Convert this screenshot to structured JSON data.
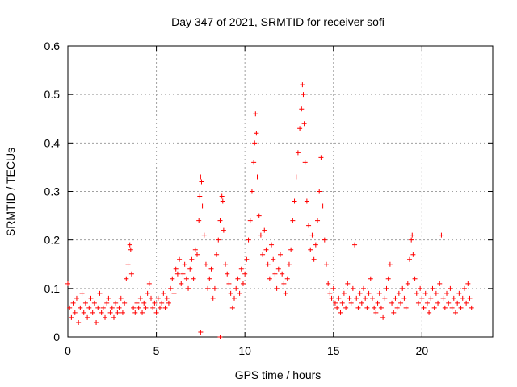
{
  "chart_data": {
    "type": "scatter",
    "title": "Day 347 of 2021, SRMTID for receiver sofi",
    "xlabel": "GPS time / hours",
    "ylabel": "SRMTID / TECUs",
    "xlim": [
      0,
      24
    ],
    "ylim": [
      0,
      0.6
    ],
    "x_ticks": [
      0,
      5,
      10,
      15,
      20
    ],
    "x_tick_labels": [
      "0",
      "5",
      "10",
      "15",
      "20"
    ],
    "y_ticks": [
      0,
      0.1,
      0.2,
      0.3,
      0.4,
      0.5,
      0.6
    ],
    "y_tick_labels": [
      "0",
      "0.1",
      "0.2",
      "0.3",
      "0.4",
      "0.5",
      "0.6"
    ],
    "grid": true,
    "marker": "+",
    "series_color": "#ff0000",
    "series": [
      {
        "name": "SRMTID",
        "points": [
          [
            0.0,
            0.11
          ],
          [
            0.1,
            0.06
          ],
          [
            0.2,
            0.04
          ],
          [
            0.3,
            0.07
          ],
          [
            0.4,
            0.05
          ],
          [
            0.5,
            0.08
          ],
          [
            0.6,
            0.03
          ],
          [
            0.7,
            0.06
          ],
          [
            0.8,
            0.09
          ],
          [
            0.9,
            0.05
          ],
          [
            1.0,
            0.07
          ],
          [
            1.1,
            0.04
          ],
          [
            1.2,
            0.06
          ],
          [
            1.3,
            0.08
          ],
          [
            1.4,
            0.05
          ],
          [
            1.5,
            0.07
          ],
          [
            1.6,
            0.03
          ],
          [
            1.7,
            0.06
          ],
          [
            1.8,
            0.09
          ],
          [
            1.9,
            0.05
          ],
          [
            2.0,
            0.06
          ],
          [
            2.1,
            0.04
          ],
          [
            2.2,
            0.07
          ],
          [
            2.3,
            0.08
          ],
          [
            2.4,
            0.05
          ],
          [
            2.5,
            0.06
          ],
          [
            2.6,
            0.04
          ],
          [
            2.7,
            0.07
          ],
          [
            2.8,
            0.05
          ],
          [
            2.9,
            0.06
          ],
          [
            3.0,
            0.08
          ],
          [
            3.1,
            0.05
          ],
          [
            3.2,
            0.07
          ],
          [
            3.3,
            0.12
          ],
          [
            3.4,
            0.15
          ],
          [
            3.5,
            0.19
          ],
          [
            3.55,
            0.18
          ],
          [
            3.6,
            0.13
          ],
          [
            3.7,
            0.06
          ],
          [
            3.8,
            0.05
          ],
          [
            3.9,
            0.07
          ],
          [
            4.0,
            0.06
          ],
          [
            4.1,
            0.08
          ],
          [
            4.2,
            0.05
          ],
          [
            4.3,
            0.07
          ],
          [
            4.4,
            0.06
          ],
          [
            4.5,
            0.09
          ],
          [
            4.6,
            0.11
          ],
          [
            4.7,
            0.08
          ],
          [
            4.8,
            0.06
          ],
          [
            4.9,
            0.07
          ],
          [
            5.0,
            0.05
          ],
          [
            5.1,
            0.08
          ],
          [
            5.2,
            0.06
          ],
          [
            5.3,
            0.07
          ],
          [
            5.4,
            0.09
          ],
          [
            5.5,
            0.06
          ],
          [
            5.6,
            0.08
          ],
          [
            5.7,
            0.07
          ],
          [
            5.8,
            0.1
          ],
          [
            5.9,
            0.12
          ],
          [
            6.0,
            0.09
          ],
          [
            6.1,
            0.14
          ],
          [
            6.2,
            0.13
          ],
          [
            6.3,
            0.16
          ],
          [
            6.4,
            0.11
          ],
          [
            6.5,
            0.13
          ],
          [
            6.6,
            0.15
          ],
          [
            6.7,
            0.12
          ],
          [
            6.8,
            0.1
          ],
          [
            6.9,
            0.14
          ],
          [
            7.0,
            0.16
          ],
          [
            7.1,
            0.12
          ],
          [
            7.2,
            0.18
          ],
          [
            7.3,
            0.17
          ],
          [
            7.4,
            0.24
          ],
          [
            7.45,
            0.29
          ],
          [
            7.5,
            0.33
          ],
          [
            7.55,
            0.32
          ],
          [
            7.6,
            0.27
          ],
          [
            7.7,
            0.21
          ],
          [
            7.8,
            0.15
          ],
          [
            7.9,
            0.1
          ],
          [
            8.0,
            0.12
          ],
          [
            8.1,
            0.14
          ],
          [
            8.2,
            0.08
          ],
          [
            8.3,
            0.1
          ],
          [
            8.4,
            0.17
          ],
          [
            8.5,
            0.2
          ],
          [
            8.6,
            0.24
          ],
          [
            8.7,
            0.29
          ],
          [
            8.75,
            0.28
          ],
          [
            8.8,
            0.22
          ],
          [
            8.9,
            0.15
          ],
          [
            9.0,
            0.13
          ],
          [
            9.1,
            0.11
          ],
          [
            9.2,
            0.09
          ],
          [
            9.3,
            0.06
          ],
          [
            9.4,
            0.08
          ],
          [
            9.5,
            0.1
          ],
          [
            9.6,
            0.12
          ],
          [
            9.7,
            0.09
          ],
          [
            9.8,
            0.14
          ],
          [
            9.9,
            0.11
          ],
          [
            10.0,
            0.13
          ],
          [
            10.1,
            0.16
          ],
          [
            10.2,
            0.2
          ],
          [
            10.3,
            0.24
          ],
          [
            10.4,
            0.3
          ],
          [
            10.5,
            0.36
          ],
          [
            10.55,
            0.4
          ],
          [
            10.6,
            0.46
          ],
          [
            10.65,
            0.42
          ],
          [
            10.7,
            0.33
          ],
          [
            10.8,
            0.25
          ],
          [
            10.9,
            0.21
          ],
          [
            11.0,
            0.17
          ],
          [
            11.1,
            0.22
          ],
          [
            11.2,
            0.18
          ],
          [
            11.3,
            0.15
          ],
          [
            11.4,
            0.12
          ],
          [
            11.5,
            0.19
          ],
          [
            11.6,
            0.16
          ],
          [
            11.7,
            0.13
          ],
          [
            11.8,
            0.1
          ],
          [
            11.9,
            0.14
          ],
          [
            12.0,
            0.17
          ],
          [
            12.1,
            0.13
          ],
          [
            12.2,
            0.11
          ],
          [
            12.3,
            0.09
          ],
          [
            12.4,
            0.12
          ],
          [
            12.5,
            0.15
          ],
          [
            12.6,
            0.18
          ],
          [
            12.7,
            0.24
          ],
          [
            12.8,
            0.28
          ],
          [
            12.9,
            0.33
          ],
          [
            13.0,
            0.38
          ],
          [
            13.1,
            0.43
          ],
          [
            13.2,
            0.47
          ],
          [
            13.25,
            0.52
          ],
          [
            13.3,
            0.5
          ],
          [
            13.35,
            0.44
          ],
          [
            13.4,
            0.36
          ],
          [
            13.5,
            0.28
          ],
          [
            13.6,
            0.23
          ],
          [
            13.7,
            0.18
          ],
          [
            13.8,
            0.21
          ],
          [
            13.9,
            0.16
          ],
          [
            14.0,
            0.19
          ],
          [
            14.1,
            0.24
          ],
          [
            14.2,
            0.3
          ],
          [
            14.3,
            0.37
          ],
          [
            14.4,
            0.27
          ],
          [
            14.5,
            0.2
          ],
          [
            14.6,
            0.15
          ],
          [
            14.7,
            0.11
          ],
          [
            14.8,
            0.09
          ],
          [
            14.9,
            0.08
          ],
          [
            15.0,
            0.1
          ],
          [
            15.1,
            0.07
          ],
          [
            15.2,
            0.06
          ],
          [
            15.3,
            0.08
          ],
          [
            15.4,
            0.05
          ],
          [
            15.5,
            0.07
          ],
          [
            15.6,
            0.09
          ],
          [
            15.7,
            0.06
          ],
          [
            15.8,
            0.11
          ],
          [
            15.9,
            0.08
          ],
          [
            16.0,
            0.07
          ],
          [
            16.1,
            0.1
          ],
          [
            16.2,
            0.19
          ],
          [
            16.3,
            0.08
          ],
          [
            16.4,
            0.06
          ],
          [
            16.5,
            0.09
          ],
          [
            16.6,
            0.07
          ],
          [
            16.7,
            0.1
          ],
          [
            16.8,
            0.08
          ],
          [
            16.9,
            0.06
          ],
          [
            17.0,
            0.09
          ],
          [
            17.1,
            0.12
          ],
          [
            17.2,
            0.08
          ],
          [
            17.3,
            0.06
          ],
          [
            17.4,
            0.05
          ],
          [
            17.5,
            0.07
          ],
          [
            17.6,
            0.09
          ],
          [
            17.7,
            0.06
          ],
          [
            17.8,
            0.04
          ],
          [
            17.9,
            0.08
          ],
          [
            18.0,
            0.1
          ],
          [
            18.1,
            0.12
          ],
          [
            18.2,
            0.15
          ],
          [
            18.3,
            0.07
          ],
          [
            18.4,
            0.05
          ],
          [
            18.5,
            0.08
          ],
          [
            18.6,
            0.06
          ],
          [
            18.7,
            0.09
          ],
          [
            18.8,
            0.07
          ],
          [
            18.9,
            0.1
          ],
          [
            19.0,
            0.08
          ],
          [
            19.1,
            0.06
          ],
          [
            19.2,
            0.11
          ],
          [
            19.3,
            0.16
          ],
          [
            19.4,
            0.2
          ],
          [
            19.45,
            0.21
          ],
          [
            19.5,
            0.17
          ],
          [
            19.6,
            0.12
          ],
          [
            19.7,
            0.09
          ],
          [
            19.8,
            0.07
          ],
          [
            19.9,
            0.1
          ],
          [
            20.0,
            0.08
          ],
          [
            20.1,
            0.06
          ],
          [
            20.2,
            0.09
          ],
          [
            20.3,
            0.07
          ],
          [
            20.4,
            0.05
          ],
          [
            20.5,
            0.08
          ],
          [
            20.6,
            0.1
          ],
          [
            20.7,
            0.06
          ],
          [
            20.8,
            0.09
          ],
          [
            20.9,
            0.07
          ],
          [
            21.0,
            0.11
          ],
          [
            21.1,
            0.21
          ],
          [
            21.2,
            0.08
          ],
          [
            21.3,
            0.06
          ],
          [
            21.4,
            0.09
          ],
          [
            21.5,
            0.07
          ],
          [
            21.6,
            0.1
          ],
          [
            21.7,
            0.06
          ],
          [
            21.8,
            0.08
          ],
          [
            21.9,
            0.05
          ],
          [
            22.0,
            0.07
          ],
          [
            22.1,
            0.09
          ],
          [
            22.2,
            0.06
          ],
          [
            22.3,
            0.08
          ],
          [
            22.4,
            0.1
          ],
          [
            22.5,
            0.07
          ],
          [
            22.6,
            0.11
          ],
          [
            22.7,
            0.08
          ],
          [
            22.8,
            0.06
          ],
          [
            7.5,
            0.01
          ],
          [
            8.6,
            0.0
          ]
        ]
      }
    ]
  }
}
